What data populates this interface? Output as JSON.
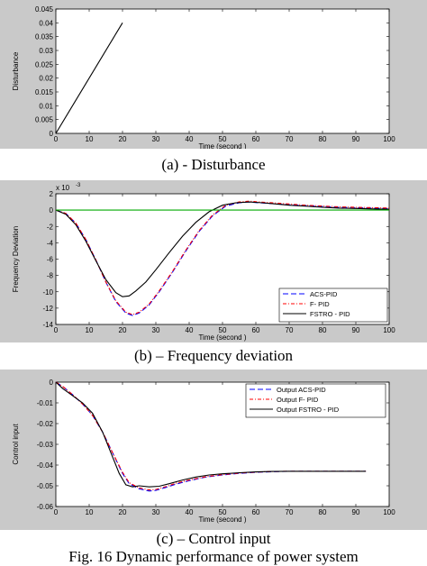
{
  "figure_caption": "Fig. 16 Dynamic performance of power system",
  "chart_data": [
    {
      "type": "line",
      "caption": "(a) - Disturbance",
      "xlabel": "Time (second )",
      "ylabel": "Disturbance",
      "xlim": [
        0,
        100
      ],
      "ylim": [
        0,
        0.045
      ],
      "xticks": [
        "0",
        "10",
        "20",
        "30",
        "40",
        "50",
        "60",
        "70",
        "80",
        "90",
        "100"
      ],
      "yticks": [
        "0",
        "0.005",
        "0.01",
        "0.015",
        "0.02",
        "0.025",
        "0.03",
        "0.035",
        "0.04",
        "0.045"
      ],
      "series": [
        {
          "color": "#000000",
          "dash": "solid",
          "x": [
            0,
            20
          ],
          "y": [
            0,
            0.04
          ]
        }
      ]
    },
    {
      "type": "line",
      "caption": "(b) – Frequency deviation",
      "xlabel": "Time (second )",
      "ylabel": "Frequency Deviation",
      "exponent_label": "x 10",
      "exponent_sup": "-3",
      "xlim": [
        0,
        100
      ],
      "ylim": [
        -14,
        2
      ],
      "xticks": [
        "0",
        "10",
        "20",
        "30",
        "40",
        "50",
        "60",
        "70",
        "80",
        "90",
        "100"
      ],
      "yticks": [
        "-14",
        "-12",
        "-10",
        "-8",
        "-6",
        "-4",
        "-2",
        "0",
        "2"
      ],
      "legend_position": "bottom-right",
      "series": [
        {
          "name": "ACS-PID",
          "color": "#0000ff",
          "dash": "6,3",
          "x": [
            0,
            3,
            6,
            9,
            12,
            15,
            18,
            21,
            23,
            25,
            28,
            31,
            35,
            39,
            43,
            47,
            51,
            55,
            58,
            61,
            65,
            70,
            75,
            80,
            85,
            90,
            95,
            100
          ],
          "y": [
            0,
            -0.4,
            -1.6,
            -3.6,
            -6.1,
            -8.8,
            -11.2,
            -12.6,
            -12.9,
            -12.6,
            -11.6,
            -10.0,
            -7.6,
            -5.0,
            -2.6,
            -0.7,
            0.5,
            0.9,
            1.0,
            0.9,
            0.8,
            0.65,
            0.55,
            0.45,
            0.35,
            0.3,
            0.25,
            0.2
          ]
        },
        {
          "name": "F- PID",
          "color": "#ff0000",
          "dash": "4,2,1,2",
          "x": [
            0,
            3,
            6,
            9,
            12,
            15,
            18,
            21,
            23,
            25,
            28,
            31,
            35,
            39,
            43,
            47,
            51,
            55,
            58,
            61,
            65,
            70,
            75,
            80,
            85,
            90,
            95,
            100
          ],
          "y": [
            0,
            -0.4,
            -1.6,
            -3.6,
            -6.1,
            -8.8,
            -11.1,
            -12.5,
            -12.8,
            -12.5,
            -11.5,
            -9.9,
            -7.5,
            -4.9,
            -2.5,
            -0.6,
            0.6,
            1.0,
            1.1,
            1.0,
            0.9,
            0.75,
            0.6,
            0.5,
            0.4,
            0.35,
            0.3,
            0.25
          ]
        },
        {
          "name": "FSTRO - PID",
          "color": "#000000",
          "dash": "solid",
          "x": [
            0,
            3,
            6,
            9,
            12,
            15,
            18,
            20,
            22,
            24,
            27,
            30,
            34,
            38,
            42,
            46,
            50,
            54,
            58,
            62,
            66,
            70,
            76,
            80,
            85,
            90,
            95,
            100
          ],
          "y": [
            0,
            -0.5,
            -1.8,
            -3.8,
            -6.2,
            -8.5,
            -10.1,
            -10.6,
            -10.5,
            -9.9,
            -8.8,
            -7.3,
            -5.2,
            -3.2,
            -1.5,
            -0.2,
            0.6,
            0.9,
            1.0,
            0.9,
            0.75,
            0.6,
            0.45,
            0.35,
            0.25,
            0.2,
            0.15,
            0.1
          ]
        },
        {
          "color": "#00aa00",
          "dash": "solid",
          "x": [
            0,
            100
          ],
          "y": [
            0,
            0
          ]
        }
      ]
    },
    {
      "type": "line",
      "caption": "(c) – Control input",
      "xlabel": "Time (second )",
      "ylabel": "Control input",
      "xlim": [
        0,
        100
      ],
      "ylim": [
        -0.06,
        0
      ],
      "xticks": [
        "0",
        "10",
        "20",
        "30",
        "40",
        "50",
        "60",
        "70",
        "80",
        "90",
        "100"
      ],
      "yticks": [
        "0",
        "-0.01",
        "-0.02",
        "-0.03",
        "-0.04",
        "-0.05",
        "-0.06"
      ],
      "legend_position": "top-right",
      "series": [
        {
          "name": "Output ACS-PID",
          "color": "#0000ff",
          "dash": "6,3",
          "x": [
            0,
            2,
            5,
            8,
            11,
            14,
            17,
            20,
            22,
            25,
            28,
            30,
            33,
            36,
            40,
            45,
            50,
            55,
            60,
            65,
            70,
            75,
            80,
            85,
            90,
            93
          ],
          "y": [
            0,
            -0.002,
            -0.006,
            -0.0105,
            -0.016,
            -0.024,
            -0.034,
            -0.044,
            -0.049,
            -0.0515,
            -0.0525,
            -0.0522,
            -0.0508,
            -0.0492,
            -0.0475,
            -0.0458,
            -0.0448,
            -0.044,
            -0.0435,
            -0.0432,
            -0.043,
            -0.043,
            -0.043,
            -0.043,
            -0.043,
            -0.043
          ]
        },
        {
          "name": "Output F- PID",
          "color": "#ff0000",
          "dash": "4,2,1,2",
          "x": [
            0,
            2,
            5,
            8,
            11,
            14,
            17,
            20,
            22,
            25,
            28,
            30,
            33,
            36,
            40,
            45,
            50,
            55,
            60,
            65,
            70,
            75,
            80,
            85,
            90,
            93
          ],
          "y": [
            0,
            -0.002,
            -0.006,
            -0.0105,
            -0.016,
            -0.024,
            -0.034,
            -0.0435,
            -0.0485,
            -0.051,
            -0.052,
            -0.0518,
            -0.0504,
            -0.0488,
            -0.0472,
            -0.0456,
            -0.0446,
            -0.0439,
            -0.0434,
            -0.0431,
            -0.043,
            -0.043,
            -0.043,
            -0.043,
            -0.043,
            -0.043
          ]
        },
        {
          "name": "Output FSTRO - PID",
          "color": "#000000",
          "dash": "solid",
          "x": [
            0,
            2,
            5,
            8,
            11,
            14,
            17,
            19,
            21,
            23,
            25,
            28,
            31,
            34,
            38,
            42,
            46,
            50,
            55,
            60,
            65,
            70,
            80,
            90,
            93
          ],
          "y": [
            0,
            -0.003,
            -0.0065,
            -0.01,
            -0.015,
            -0.024,
            -0.036,
            -0.044,
            -0.0495,
            -0.0505,
            -0.05,
            -0.0505,
            -0.0502,
            -0.049,
            -0.0472,
            -0.0458,
            -0.0448,
            -0.0442,
            -0.0437,
            -0.0433,
            -0.0431,
            -0.043,
            -0.043,
            -0.043,
            -0.043
          ]
        }
      ]
    }
  ]
}
